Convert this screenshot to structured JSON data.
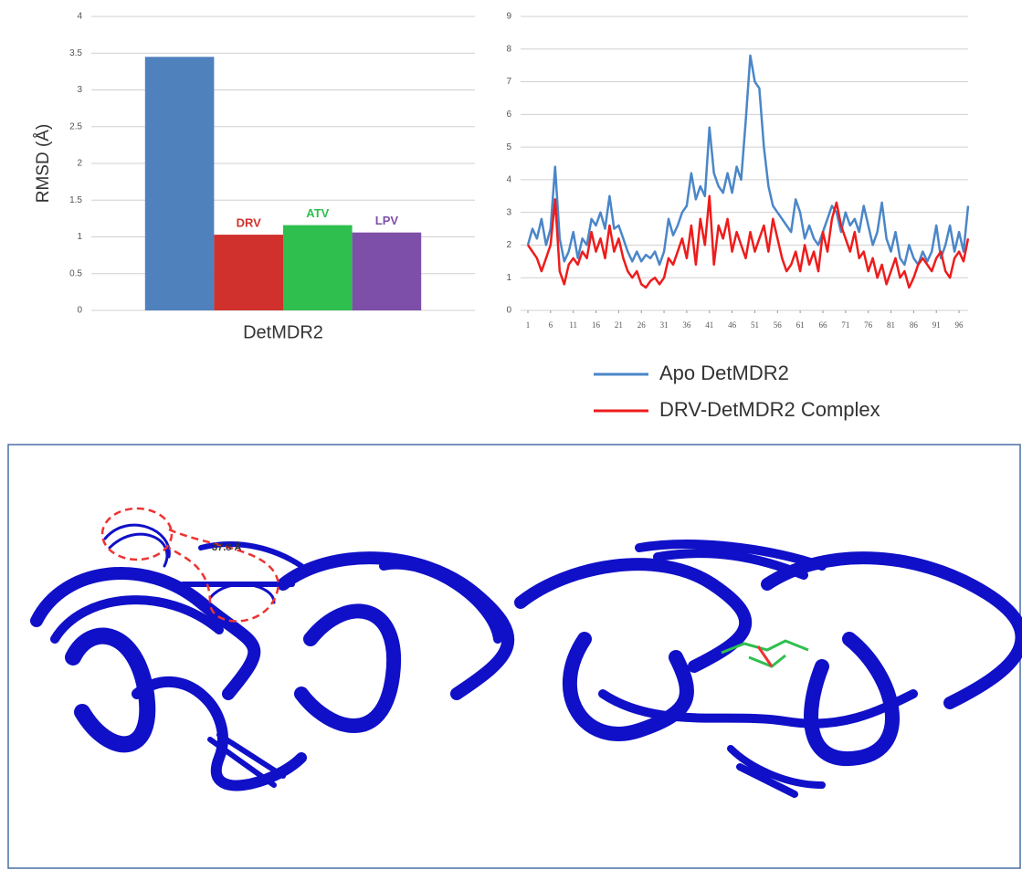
{
  "chart_data": [
    {
      "type": "bar",
      "ylabel": "RMSD (Å)",
      "categories": [
        "DetMDR2"
      ],
      "series": [
        {
          "color": "#4f81bd",
          "values": [
            3.45
          ]
        },
        {
          "name": "DRV",
          "color": "#d0312d",
          "values": [
            1.03
          ]
        },
        {
          "name": "ATV",
          "color": "#2fbf4f",
          "values": [
            1.16
          ]
        },
        {
          "name": "LPV",
          "color": "#7e4fa8",
          "values": [
            1.06
          ]
        }
      ],
      "ylim": [
        0,
        4
      ],
      "yticks": [
        0,
        0.5,
        1,
        1.5,
        2,
        2.5,
        3,
        3.5,
        4
      ],
      "grid": true
    },
    {
      "type": "line",
      "x": [
        1,
        2,
        3,
        4,
        5,
        6,
        7,
        8,
        9,
        10,
        11,
        12,
        13,
        14,
        15,
        16,
        17,
        18,
        19,
        20,
        21,
        22,
        23,
        24,
        25,
        26,
        27,
        28,
        29,
        30,
        31,
        32,
        33,
        34,
        35,
        36,
        37,
        38,
        39,
        40,
        41,
        42,
        43,
        44,
        45,
        46,
        47,
        48,
        49,
        50,
        51,
        52,
        53,
        54,
        55,
        56,
        57,
        58,
        59,
        60,
        61,
        62,
        63,
        64,
        65,
        66,
        67,
        68,
        69,
        70,
        71,
        72,
        73,
        74,
        75,
        76,
        77,
        78,
        79,
        80,
        81,
        82,
        83,
        84,
        85,
        86,
        87,
        88,
        89,
        90,
        91,
        92,
        93,
        94,
        95,
        96,
        97,
        98
      ],
      "xlim": [
        1,
        98
      ],
      "xticks": [
        1,
        6,
        11,
        16,
        21,
        26,
        31,
        36,
        41,
        46,
        51,
        56,
        61,
        66,
        71,
        76,
        81,
        86,
        91,
        96
      ],
      "ylim": [
        0,
        9
      ],
      "yticks": [
        0,
        1,
        2,
        3,
        4,
        5,
        6,
        7,
        8,
        9
      ],
      "grid": true,
      "series": [
        {
          "name": "Apo DetMDR2",
          "color": "#4a86c8",
          "values": [
            2,
            2.5,
            2.2,
            2.8,
            2,
            2.5,
            4.4,
            2.2,
            1.5,
            1.8,
            2.4,
            1.6,
            2.2,
            2,
            2.8,
            2.6,
            3,
            2.5,
            3.5,
            2.5,
            2.6,
            2.2,
            1.8,
            1.5,
            1.8,
            1.5,
            1.7,
            1.6,
            1.8,
            1.4,
            1.8,
            2.8,
            2.3,
            2.6,
            3,
            3.2,
            4.2,
            3.4,
            3.8,
            3.5,
            5.6,
            4.2,
            3.8,
            3.6,
            4.2,
            3.6,
            4.4,
            4,
            5.8,
            7.8,
            7,
            6.8,
            5,
            3.8,
            3.2,
            3,
            2.8,
            2.6,
            2.4,
            3.4,
            3,
            2.2,
            2.6,
            2.2,
            2,
            2.4,
            2.8,
            3.2,
            3,
            2.4,
            3,
            2.6,
            2.8,
            2.4,
            3.2,
            2.6,
            2,
            2.4,
            3.3,
            2.2,
            1.8,
            2.4,
            1.6,
            1.4,
            2,
            1.6,
            1.4,
            1.8,
            1.5,
            1.8,
            2.6,
            1.6,
            2,
            2.6,
            1.8,
            2.4,
            1.8,
            3.2
          ]
        },
        {
          "name": "DRV-DetMDR2 Complex",
          "color": "#ee1c1c",
          "values": [
            2,
            1.8,
            1.6,
            1.2,
            1.6,
            2,
            3.4,
            1.2,
            0.8,
            1.4,
            1.6,
            1.4,
            1.8,
            1.6,
            2.4,
            1.8,
            2.2,
            1.6,
            2.6,
            1.8,
            2.2,
            1.6,
            1.2,
            1,
            1.2,
            0.8,
            0.7,
            0.9,
            1,
            0.8,
            1,
            1.6,
            1.4,
            1.8,
            2.2,
            1.6,
            2.6,
            1.4,
            2.8,
            2,
            3.5,
            1.4,
            2.6,
            2.2,
            2.8,
            1.8,
            2.4,
            2,
            1.6,
            2.4,
            1.8,
            2.2,
            2.6,
            1.8,
            2.8,
            2.2,
            1.6,
            1.2,
            1.4,
            1.8,
            1.2,
            2,
            1.4,
            1.8,
            1.2,
            2.4,
            1.8,
            2.8,
            3.3,
            2.6,
            2.2,
            1.8,
            2.4,
            1.6,
            1.8,
            1.2,
            1.6,
            1,
            1.4,
            0.8,
            1.2,
            1.6,
            1,
            1.2,
            0.7,
            1,
            1.4,
            1.6,
            1.4,
            1.2,
            1.6,
            1.8,
            1.2,
            1,
            1.6,
            1.8,
            1.5,
            2.2
          ]
        }
      ]
    }
  ],
  "annotation": "37.8 Å"
}
